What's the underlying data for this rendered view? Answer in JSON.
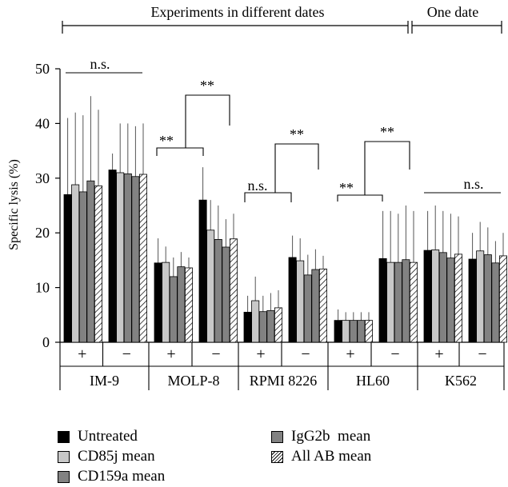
{
  "chart_data": {
    "type": "bar",
    "ylabel": "Specific lysis (%)",
    "ylim": [
      0,
      50
    ],
    "yticks": [
      0,
      10,
      20,
      30,
      40,
      50
    ],
    "cell_lines": [
      "IM-9",
      "MOLP-8",
      "RPMI 8226",
      "HL60",
      "K562"
    ],
    "conditions": [
      "+",
      "−"
    ],
    "groups": [
      "Experiments in different dates",
      "One date"
    ],
    "series": [
      {
        "name": "Untreated",
        "fill": "black",
        "values": [
          27,
          31.5,
          14.5,
          26,
          5.5,
          15.5,
          4,
          15.3,
          16.8,
          15.2
        ],
        "err": [
          41,
          34.5,
          19,
          32,
          8.5,
          19.5,
          6,
          24,
          24,
          20
        ]
      },
      {
        "name": "CD85j mean",
        "fill": "light",
        "values": [
          28.8,
          31,
          14.6,
          20.5,
          7.6,
          14.9,
          4,
          14.6,
          16.9,
          16.7
        ],
        "err": [
          42,
          40,
          17.5,
          26,
          12,
          19,
          5.5,
          24,
          25,
          22
        ]
      },
      {
        "name": "CD159a mean",
        "fill": "mid",
        "values": [
          27.5,
          30.8,
          12,
          18.8,
          5.6,
          12.3,
          4,
          14.6,
          16.4,
          16
        ],
        "err": [
          41.5,
          40,
          15.5,
          25,
          8.5,
          16,
          5.5,
          23.5,
          24,
          21
        ]
      },
      {
        "name": "IgG2b  mean",
        "fill": "mid",
        "values": [
          29.5,
          30.3,
          13.8,
          17.4,
          5.8,
          13.3,
          4,
          15.1,
          15.4,
          14.5
        ],
        "err": [
          45,
          39.5,
          16.5,
          22.5,
          9,
          17,
          5.5,
          25,
          23.5,
          18.5
        ]
      },
      {
        "name": "All AB mean",
        "fill": "hatch",
        "values": [
          28.6,
          30.7,
          13.6,
          18.9,
          6.3,
          13.4,
          4,
          14.6,
          16.1,
          15.8
        ],
        "err": [
          42.5,
          40,
          15.5,
          23.5,
          9.5,
          15.8,
          5.5,
          24,
          23,
          20
        ]
      }
    ],
    "annotations": [
      "n.s.",
      "**",
      "**",
      "n.s.",
      "**",
      "**",
      "**",
      "n.s."
    ],
    "colors": {
      "black": "#000000",
      "light": "#c8c8c8",
      "mid": "#828282"
    }
  }
}
